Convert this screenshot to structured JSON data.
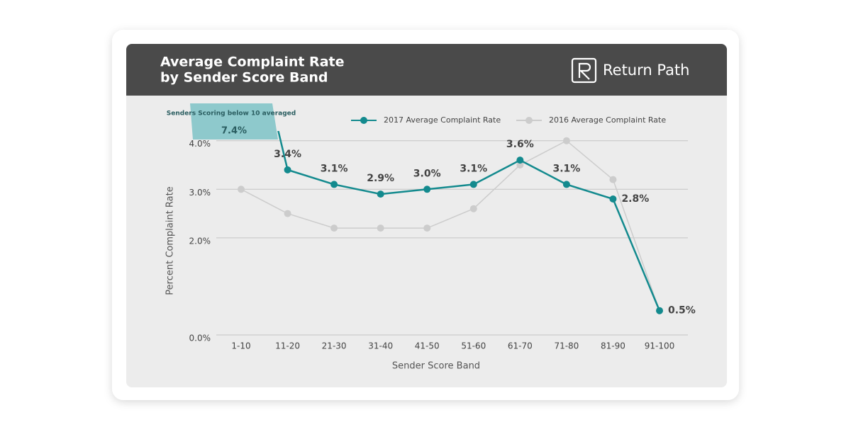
{
  "brand": "Return Path",
  "chart_data": {
    "type": "line",
    "title": "Average Complaint Rate",
    "subtitle": "by Sender Score Band",
    "x_label": "Sender Score Band",
    "y_label": "Percent Complaint Rate",
    "annotation": "Senders Scoring below 10 averaged",
    "categories": [
      "1-10",
      "11-20",
      "21-30",
      "31-40",
      "41-50",
      "51-60",
      "61-70",
      "71-80",
      "81-90",
      "91-100"
    ],
    "series": [
      {
        "name": "2017 Average Complaint Rate",
        "color": "#138a8e",
        "values": [
          7.4,
          3.4,
          3.1,
          2.9,
          3.0,
          3.1,
          3.6,
          3.1,
          2.8,
          0.5
        ],
        "value_labels": [
          "7.4%",
          "3.4%",
          "3.1%",
          "2.9%",
          "3.0%",
          "3.1%",
          "3.6%",
          "3.1%",
          "2.8%",
          "0.5%"
        ]
      },
      {
        "name": "2016 Average Complaint Rate",
        "color": "#cccccc",
        "values": [
          3.0,
          2.5,
          2.2,
          2.2,
          2.2,
          2.6,
          3.5,
          4.0,
          3.2,
          0.5
        ]
      }
    ],
    "ylim": [
      0,
      4.2
    ],
    "yticks": [
      {
        "value": 0,
        "label": "0.0%"
      },
      {
        "value": 2,
        "label": "2.0%"
      },
      {
        "value": 3,
        "label": "3.0%"
      },
      {
        "value": 4,
        "label": "4.0%"
      }
    ],
    "grid": true
  }
}
